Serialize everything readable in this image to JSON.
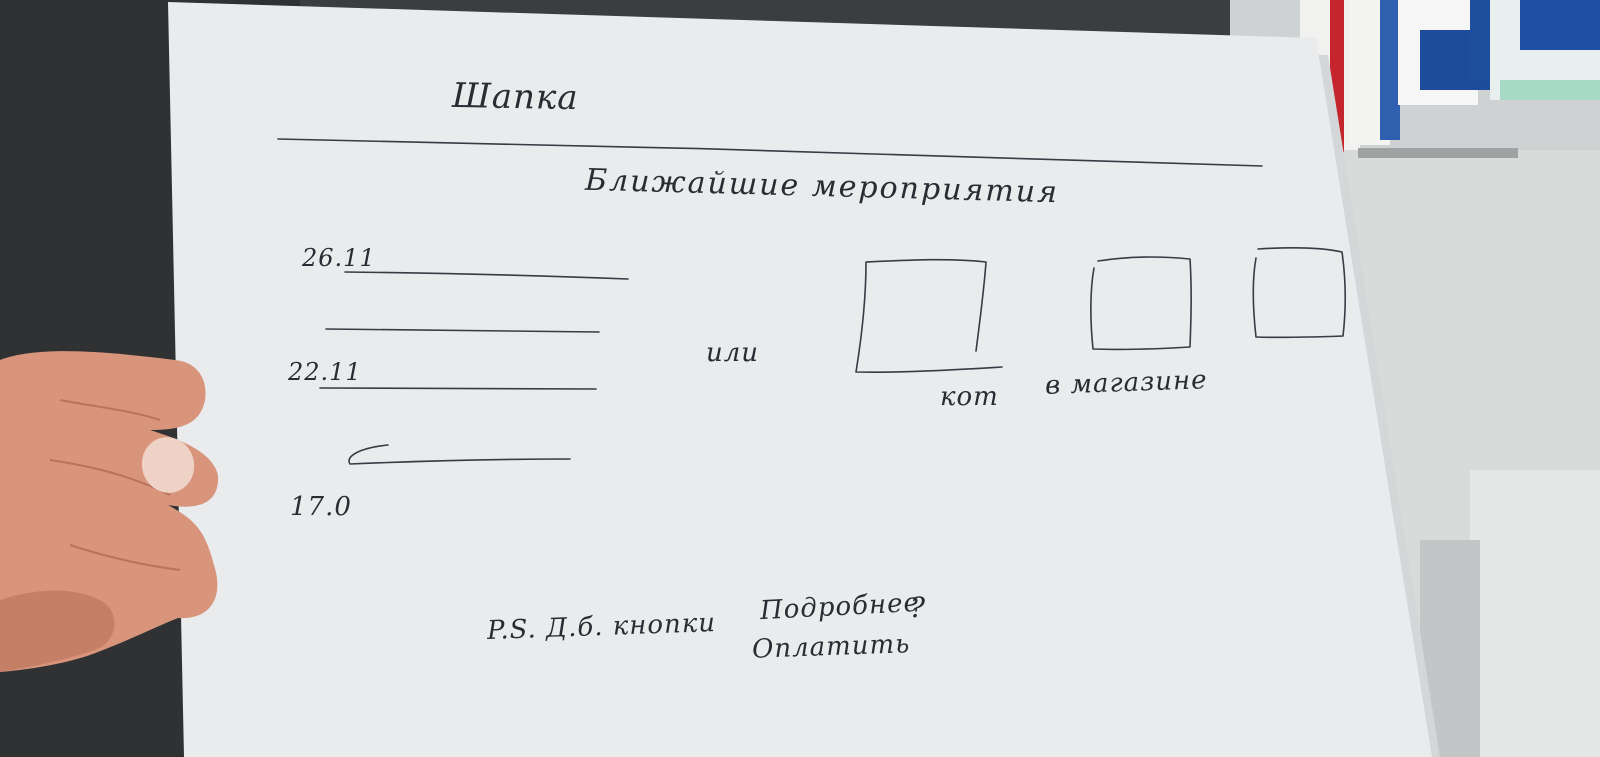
{
  "sketch": {
    "title": "Шапка",
    "heading": "Ближайшие мероприятия",
    "events": [
      {
        "date": "26.11"
      },
      {
        "date": "22.11"
      },
      {
        "date": "17.0"
      }
    ],
    "or_label": "или",
    "image_labels": [
      "кот",
      "в магазине"
    ],
    "footnote": "P.S. Д.б. кнопки",
    "buttons": [
      "Подробнее",
      "Оплатить"
    ],
    "question_mark": "?"
  },
  "colors": {
    "paper": "#e9ebec",
    "ink": "#2b2b33",
    "background": "#3a3c3d",
    "skin": "#d8957c"
  }
}
